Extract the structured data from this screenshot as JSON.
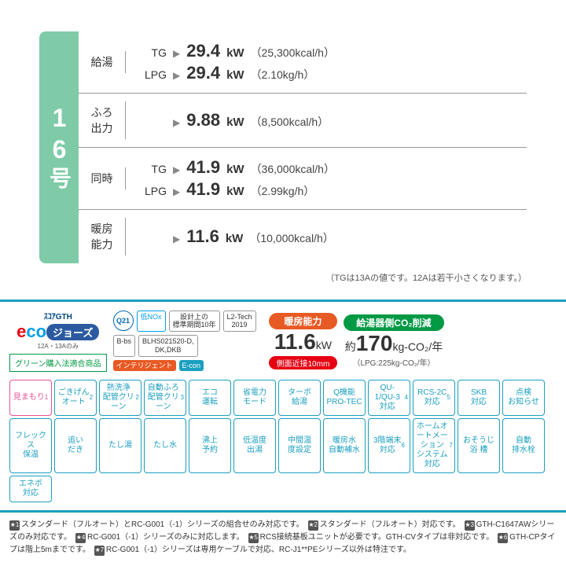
{
  "model": {
    "number": "16",
    "suffix": "号"
  },
  "specs": [
    {
      "label": "給湯",
      "lines": [
        {
          "gas": "TG",
          "val": "29.4",
          "unit": "kW",
          "sub": "（25,300kcal/h）"
        },
        {
          "gas": "LPG",
          "val": "29.4",
          "unit": "kW",
          "sub": "（2.10kg/h）"
        }
      ]
    },
    {
      "label": "ふろ\n出力",
      "lines": [
        {
          "gas": "",
          "val": "9.88",
          "unit": "kW",
          "sub": "（8,500kcal/h）"
        }
      ]
    },
    {
      "label": "同時",
      "lines": [
        {
          "gas": "TG",
          "val": "41.9",
          "unit": "kW",
          "sub": "（36,000kcal/h）"
        },
        {
          "gas": "LPG",
          "val": "41.9",
          "unit": "kW",
          "sub": "（2.99kg/h）"
        }
      ]
    },
    {
      "label": "暖房\n能力",
      "lines": [
        {
          "gas": "",
          "val": "11.6",
          "unit": "kW",
          "sub": "（10,000kcal/h）"
        }
      ]
    }
  ],
  "note": "（TGは13Aの値です。12Aは若干小さくなります。）",
  "eco": {
    "title": "ｽｺｱGTH",
    "e": "e",
    "co": "co",
    "jaws": "ジョーズ",
    "gas": "12A・13Aのみ"
  },
  "green_badge": "グリーン購入法適合商品",
  "cert_badges": [
    {
      "t": "Q21"
    },
    {
      "t": "低NOx"
    },
    {
      "t": "設計上の\n標準期間10年"
    },
    {
      "t": "L2-Tech\n2019"
    },
    {
      "t": "B-bs"
    },
    {
      "t": "BLHS021520-D,\nDK,DKB"
    },
    {
      "t": "インテリジェント"
    },
    {
      "t": "E-con"
    }
  ],
  "heat": {
    "label": "暖房能力",
    "val": "11.6",
    "unit": "kW",
    "side": "側面近接10mm"
  },
  "co2": {
    "label": "給湯器側CO₂削減",
    "approx": "約",
    "val": "170",
    "unit": "kg-CO₂/年",
    "sub": "（LPG:225kg-CO₂/年）"
  },
  "features": [
    {
      "t": "見まもり",
      "sup": "1",
      "pink": true
    },
    {
      "t": "ごきげん\nオート",
      "sup": "2"
    },
    {
      "t": "熱洗浄\n配管クリーン",
      "sup": "2"
    },
    {
      "t": "自動ふろ\n配管クリーン",
      "sup": "3"
    },
    {
      "t": "エコ\n運転"
    },
    {
      "t": "省電力\nモード"
    },
    {
      "t": "ターボ\n給湯"
    },
    {
      "t": "Q機能\nPRO-TEC"
    },
    {
      "t": "QU-1/QU-3\n対応",
      "sup": "4"
    },
    {
      "t": "RCS-2C\n対応",
      "sup": "5"
    },
    {
      "t": "SKB\n対応"
    },
    {
      "t": "点検\nお知らせ"
    },
    {
      "t": "フレックス\n保温"
    },
    {
      "t": "追い\nだき"
    },
    {
      "t": "たし湯"
    },
    {
      "t": "たし水"
    },
    {
      "t": "沸上\n予約"
    },
    {
      "t": "低温度\n出湯"
    },
    {
      "t": "中間温\n度設定"
    },
    {
      "t": "暖房水\n自動補水"
    },
    {
      "t": "3階端末\n対応",
      "sup": "6"
    },
    {
      "t": "ホームオートメーション\nシステム対応",
      "sup": "7"
    },
    {
      "t": "おそうじ\n浴 槽"
    },
    {
      "t": "自動\n排水栓"
    },
    {
      "t": "エネボ\n対応"
    }
  ],
  "footnotes": [
    {
      "n": "1",
      "t": "スタンダード（フルオート）とRC-G001（-1）シリーズの組合せのみ対応です。"
    },
    {
      "n": "2",
      "t": "スタンダード（フルオート）対応です。"
    },
    {
      "n": "3",
      "t": "GTH-C1647AWシリーズのみ対応です。"
    },
    {
      "n": "4",
      "t": "RC-G001（-1）シリーズのみに対応します。"
    },
    {
      "n": "5",
      "t": "RCS接続基板ユニットが必要です。GTH-CVタイプは非対応です。"
    },
    {
      "n": "6",
      "t": "GTH-CPタイプは階上5mまでです。"
    },
    {
      "n": "7",
      "t": "RC-G001（-1）シリーズは専用ケーブルで対応、RC-J1**PEシリーズ以外は特注です。"
    }
  ]
}
